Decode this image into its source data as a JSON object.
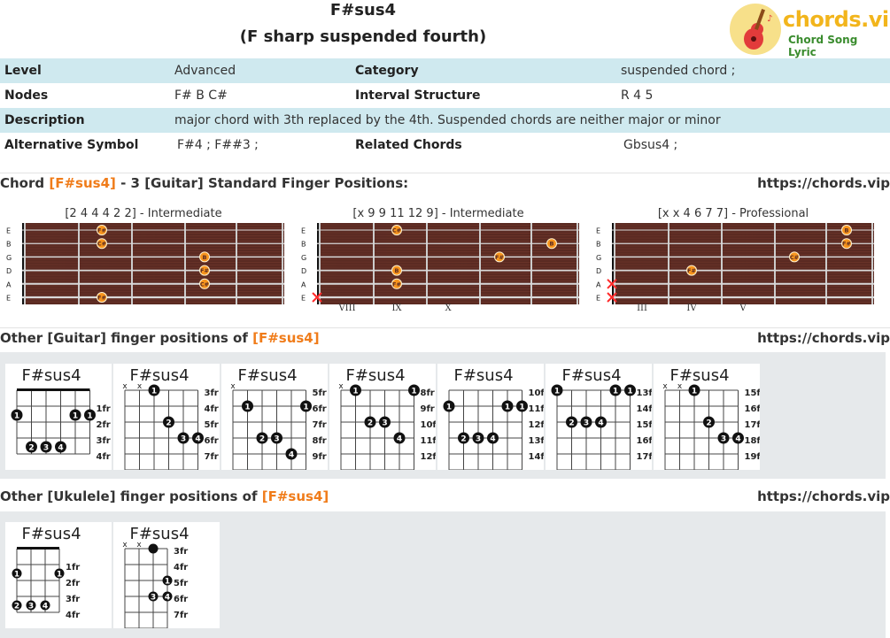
{
  "header": {
    "title": "F#sus4",
    "subtitle": "(F sharp suspended fourth)",
    "logo_text": "chords.vip",
    "logo_sub": "Chord Song Lyric"
  },
  "info": {
    "level_label": "Level",
    "level_value": "Advanced",
    "category_label": "Category",
    "category_value": "suspended chord ;",
    "nodes_label": "Nodes",
    "nodes_value": "F# B C#",
    "interval_label": "Interval Structure",
    "interval_value": "R 4 5",
    "description_label": "Description",
    "description_value": "major chord with 3th replaced by the 4th. Suspended chords are neither major or minor",
    "alt_label": "Alternative Symbol",
    "alt_value": "F#4 ; F##3 ;",
    "related_label": "Related Chords",
    "related_value": "Gbsus4 ;"
  },
  "section1": {
    "prefix": "Chord ",
    "chord": "[F#sus4]",
    "suffix": " - 3 [Guitar] Standard Finger Positions:",
    "url": "https://chords.vip"
  },
  "boards": [
    {
      "label": "[2 4 4 4 2 2] - Intermediate",
      "strings": [
        "E",
        "B",
        "G",
        "D",
        "A",
        "E"
      ],
      "frets": [],
      "dots": [
        {
          "s": 0,
          "f": 2,
          "t": "F#"
        },
        {
          "s": 1,
          "f": 2,
          "t": "C#"
        },
        {
          "s": 2,
          "f": 4,
          "t": "B"
        },
        {
          "s": 3,
          "f": 4,
          "t": "F#"
        },
        {
          "s": 4,
          "f": 4,
          "t": "C#"
        },
        {
          "s": 5,
          "f": 2,
          "t": "F#"
        }
      ],
      "mutes": []
    },
    {
      "label": "[x 9 9 11 12 9] - Intermediate",
      "strings": [
        "E",
        "B",
        "G",
        "D",
        "A",
        "E"
      ],
      "frets": [
        "VIII",
        "IX",
        "X"
      ],
      "dots": [
        {
          "s": 0,
          "f": 2,
          "t": "C#"
        },
        {
          "s": 1,
          "f": 6,
          "t": "B"
        },
        {
          "s": 2,
          "f": 5,
          "t": "F#"
        },
        {
          "s": 3,
          "f": 2,
          "t": "B"
        },
        {
          "s": 4,
          "f": 2,
          "t": "F#"
        }
      ],
      "mutes": [
        5
      ]
    },
    {
      "label": "[x x 4 6 7 7] - Professional",
      "strings": [
        "E",
        "B",
        "G",
        "D",
        "A",
        "E"
      ],
      "frets": [
        "III",
        "IV",
        "V"
      ],
      "dots": [
        {
          "s": 0,
          "f": 6,
          "t": "B"
        },
        {
          "s": 1,
          "f": 6,
          "t": "F#"
        },
        {
          "s": 2,
          "f": 5,
          "t": "C#"
        },
        {
          "s": 3,
          "f": 2,
          "t": "F#"
        }
      ],
      "mutes": [
        4,
        5
      ]
    }
  ],
  "section2": {
    "prefix": "Other [Guitar] finger positions of ",
    "chord": "[F#sus4]",
    "url": "https://chords.vip"
  },
  "guitar_diagrams": [
    {
      "name": "F#sus4",
      "frets": [
        "1fr",
        "2fr",
        "3fr",
        "4fr"
      ],
      "mute": [],
      "nut": true,
      "barre": {
        "row": 1
      },
      "dots": [
        {
          "s": 0,
          "r": 1,
          "n": "1"
        },
        {
          "s": 4,
          "r": 1,
          "n": "1"
        },
        {
          "s": 5,
          "r": 1,
          "n": "1"
        },
        {
          "s": 1,
          "r": 3,
          "n": "2"
        },
        {
          "s": 2,
          "r": 3,
          "n": "3"
        },
        {
          "s": 3,
          "r": 3,
          "n": "4"
        }
      ]
    },
    {
      "name": "F#sus4",
      "frets": [
        "3fr",
        "4fr",
        "5fr",
        "6fr",
        "7fr"
      ],
      "mute": [
        0,
        1
      ],
      "nut": false,
      "dots": [
        {
          "s": 2,
          "r": 1,
          "n": "1"
        },
        {
          "s": 3,
          "r": 3,
          "n": "2"
        },
        {
          "s": 4,
          "r": 4,
          "n": "3"
        },
        {
          "s": 5,
          "r": 4,
          "n": "4"
        }
      ]
    },
    {
      "name": "F#sus4",
      "frets": [
        "5fr",
        "6fr",
        "7fr",
        "8fr",
        "9fr"
      ],
      "mute": [
        0
      ],
      "nut": false,
      "dots": [
        {
          "s": 1,
          "r": 2,
          "n": "1"
        },
        {
          "s": 5,
          "r": 2,
          "n": "1"
        },
        {
          "s": 2,
          "r": 4,
          "n": "2"
        },
        {
          "s": 3,
          "r": 4,
          "n": "3"
        },
        {
          "s": 4,
          "r": 5,
          "n": "4"
        }
      ]
    },
    {
      "name": "F#sus4",
      "frets": [
        "8fr",
        "9fr",
        "10fr",
        "11fr",
        "12fr"
      ],
      "mute": [
        0
      ],
      "nut": false,
      "dots": [
        {
          "s": 1,
          "r": 1,
          "n": "1"
        },
        {
          "s": 5,
          "r": 1,
          "n": "1"
        },
        {
          "s": 2,
          "r": 3,
          "n": "2"
        },
        {
          "s": 3,
          "r": 3,
          "n": "3"
        },
        {
          "s": 4,
          "r": 4,
          "n": "4"
        }
      ]
    },
    {
      "name": "F#sus4",
      "frets": [
        "10fr",
        "11fr",
        "12fr",
        "13fr",
        "14fr"
      ],
      "mute": [],
      "nut": false,
      "dots": [
        {
          "s": 0,
          "r": 2,
          "n": "1"
        },
        {
          "s": 4,
          "r": 2,
          "n": "1"
        },
        {
          "s": 5,
          "r": 2,
          "n": "1"
        },
        {
          "s": 1,
          "r": 4,
          "n": "2"
        },
        {
          "s": 2,
          "r": 4,
          "n": "3"
        },
        {
          "s": 3,
          "r": 4,
          "n": "4"
        }
      ]
    },
    {
      "name": "F#sus4",
      "frets": [
        "13fr",
        "14fr",
        "15fr",
        "16fr",
        "17fr"
      ],
      "mute": [],
      "nut": false,
      "dots": [
        {
          "s": 0,
          "r": 1,
          "n": "1"
        },
        {
          "s": 4,
          "r": 1,
          "n": "1"
        },
        {
          "s": 5,
          "r": 1,
          "n": "1"
        },
        {
          "s": 1,
          "r": 3,
          "n": "2"
        },
        {
          "s": 2,
          "r": 3,
          "n": "3"
        },
        {
          "s": 3,
          "r": 3,
          "n": "4"
        }
      ]
    },
    {
      "name": "F#sus4",
      "frets": [
        "15fr",
        "16fr",
        "17fr",
        "18fr",
        "19fr"
      ],
      "mute": [
        0,
        1
      ],
      "nut": false,
      "dots": [
        {
          "s": 2,
          "r": 1,
          "n": "1"
        },
        {
          "s": 3,
          "r": 3,
          "n": "2"
        },
        {
          "s": 4,
          "r": 4,
          "n": "3"
        },
        {
          "s": 5,
          "r": 4,
          "n": "4"
        }
      ]
    }
  ],
  "section3": {
    "prefix": "Other [Ukulele] finger positions of ",
    "chord": "[F#sus4]",
    "url": "https://chords.vip"
  },
  "ukulele_diagrams": [
    {
      "name": "F#sus4",
      "frets": [
        "1fr",
        "2fr",
        "3fr",
        "4fr"
      ],
      "mute": [],
      "nut": true,
      "barre": {
        "row": 1
      },
      "dots": [
        {
          "s": 0,
          "r": 1,
          "n": "1"
        },
        {
          "s": 3,
          "r": 1,
          "n": "1"
        },
        {
          "s": 0,
          "r": 3,
          "n": "2"
        },
        {
          "s": 1,
          "r": 3,
          "n": "3"
        },
        {
          "s": 2,
          "r": 3,
          "n": "4"
        }
      ]
    },
    {
      "name": "F#sus4",
      "frets": [
        "3fr",
        "4fr",
        "5fr",
        "6fr",
        "7fr"
      ],
      "mute": [
        0,
        1
      ],
      "nut": false,
      "dots": [
        {
          "s": 2,
          "r": 1,
          "n": ""
        },
        {
          "s": 3,
          "r": 3,
          "n": "1"
        },
        {
          "s": 2,
          "r": 4,
          "n": "3"
        },
        {
          "s": 3,
          "r": 4,
          "n": "4"
        }
      ]
    }
  ],
  "colors": {
    "accent": "#f07c1a",
    "row_alt": "#cfe9ef",
    "board": "#5a2a22",
    "dot": "#f7941d"
  }
}
